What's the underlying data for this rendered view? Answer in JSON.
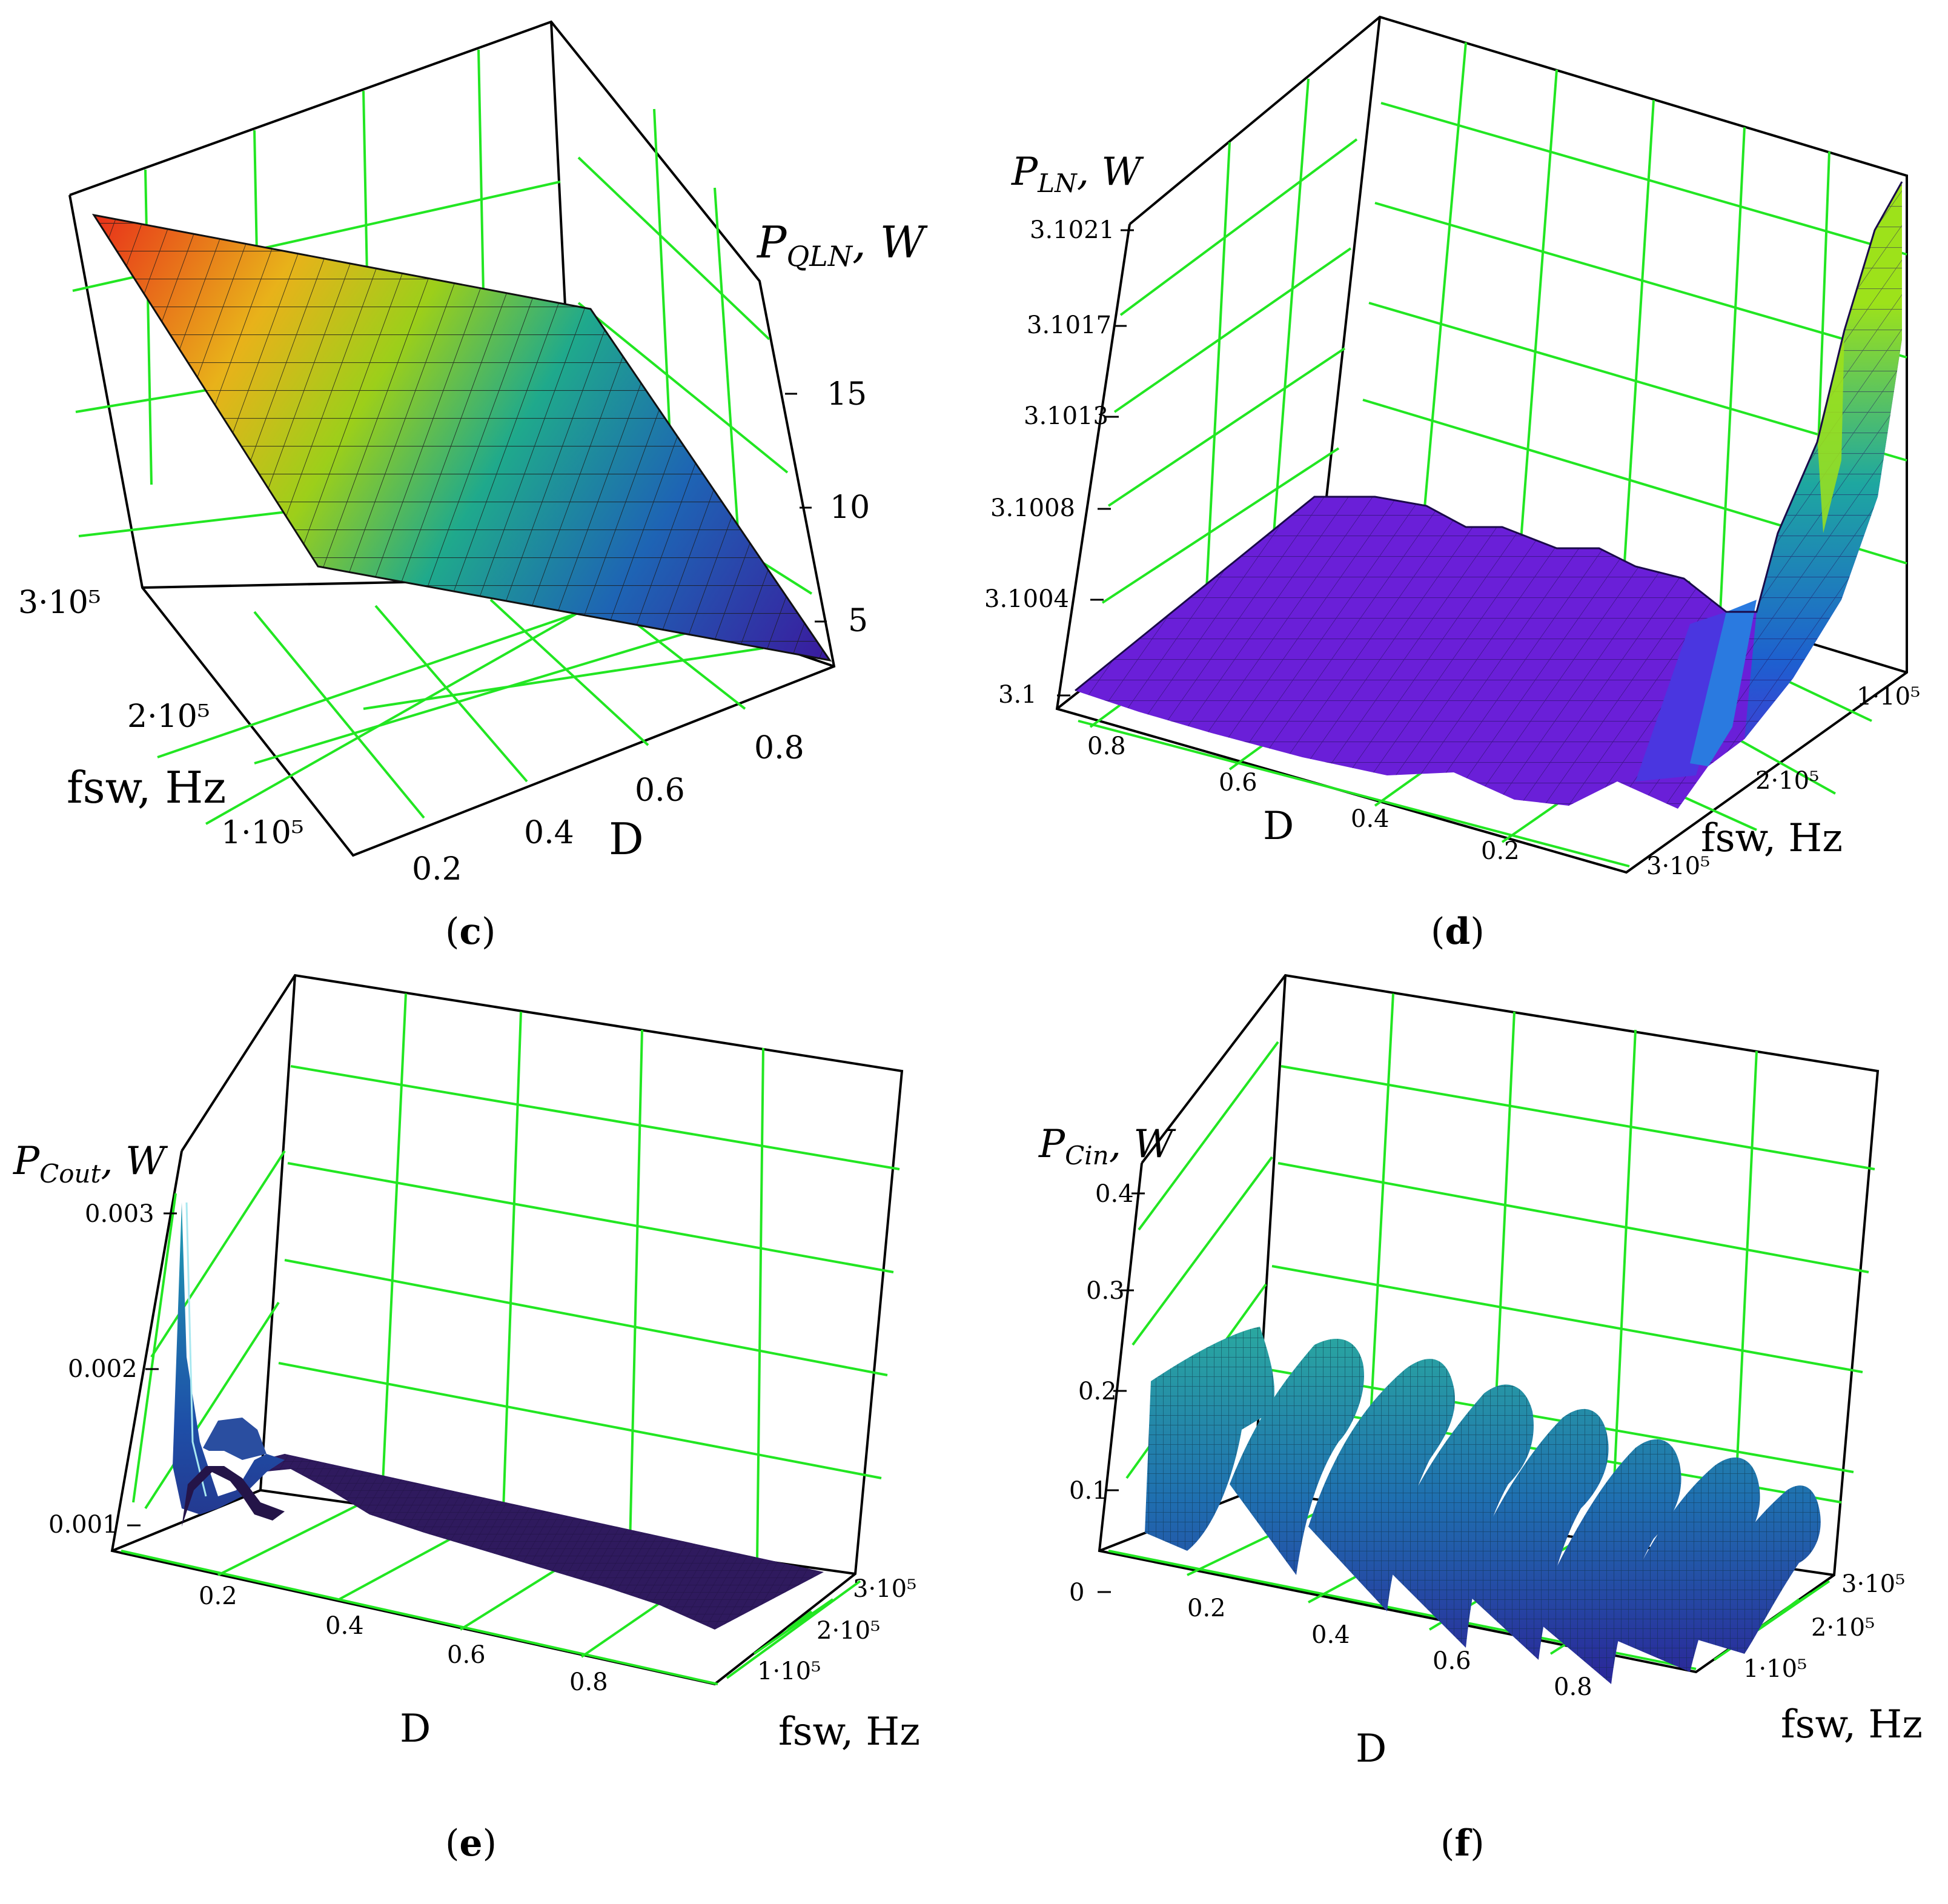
{
  "chart_data": [
    {
      "id": "c",
      "type": "surface",
      "caption": {
        "open": "(",
        "letter": "c",
        "close": ")"
      },
      "zlabel": {
        "main": "P",
        "sub": "QLN",
        "unit": ", W"
      },
      "xlabel": "D",
      "ylabel": "fsw, Hz",
      "x_ticks": [
        "0.2",
        "0.4",
        "0.6",
        "0.8"
      ],
      "y_ticks": [
        "1·10⁵",
        "2·10⁵",
        "3·10⁵"
      ],
      "z_ticks": [
        "5",
        "10",
        "15"
      ],
      "xlim": [
        0.1,
        0.9
      ],
      "ylim": [
        50000,
        300000
      ],
      "zlim": [
        2,
        20
      ],
      "surface": {
        "description": "planar",
        "corner_values": {
          "D0.1_f300k": 19.5,
          "D0.9_f50k": 2.5
        }
      }
    },
    {
      "id": "d",
      "type": "surface",
      "caption": {
        "open": "(",
        "letter": "d",
        "close": ")"
      },
      "zlabel": {
        "main": "P",
        "sub": "LN",
        "unit": ", W"
      },
      "xlabel": "D",
      "ylabel": "fsw, Hz",
      "x_ticks": [
        "0.8",
        "0.6",
        "0.4",
        "0.2"
      ],
      "y_ticks": [
        "1·10⁵",
        "2·10⁵",
        "3·10⁵"
      ],
      "z_ticks": [
        "3.1",
        "3.1004",
        "3.1008",
        "3.1013",
        "3.1017",
        "3.1021"
      ],
      "xlim": [
        0.1,
        0.9
      ],
      "ylim": [
        50000,
        300000
      ],
      "zlim": [
        3.1,
        3.1023
      ]
    },
    {
      "id": "e",
      "type": "surface",
      "caption": {
        "open": "(",
        "letter": "e",
        "close": ")"
      },
      "zlabel": {
        "main": "P",
        "sub": "Cout",
        "unit": ", W"
      },
      "xlabel": "D",
      "ylabel": "fsw, Hz",
      "x_ticks": [
        "0.2",
        "0.4",
        "0.6",
        "0.8"
      ],
      "y_ticks": [
        "1·10⁵",
        "2·10⁵",
        "3·10⁵"
      ],
      "z_ticks": [
        "0.001",
        "0.002",
        "0.003"
      ],
      "xlim": [
        0.1,
        0.95
      ],
      "ylim": [
        50000,
        300000
      ],
      "zlim": [
        0,
        0.0034
      ]
    },
    {
      "id": "f",
      "type": "surface",
      "caption": {
        "open": "(",
        "letter": "f",
        "close": ")"
      },
      "zlabel": {
        "main": "P",
        "sub": "Cin",
        "unit": ", W"
      },
      "xlabel": "D",
      "ylabel": "fsw, Hz",
      "x_ticks": [
        "0.2",
        "0.4",
        "0.6",
        "0.8"
      ],
      "y_ticks": [
        "1·10⁵",
        "2·10⁵",
        "3·10⁵"
      ],
      "z_ticks": [
        "0",
        "0.1",
        "0.2",
        "0.3",
        "0.4"
      ],
      "xlim": [
        0.1,
        0.95
      ],
      "ylim": [
        50000,
        300000
      ],
      "zlim": [
        0,
        0.45
      ]
    }
  ]
}
